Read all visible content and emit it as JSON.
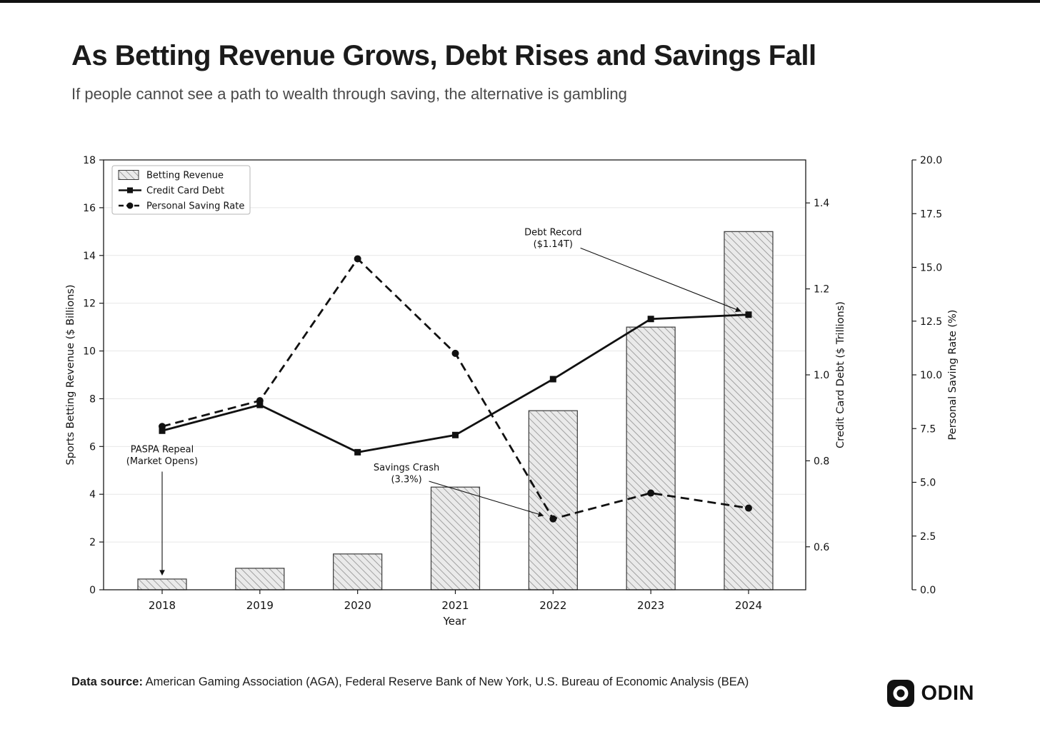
{
  "header": {
    "title": "As Betting Revenue Grows, Debt Rises and Savings Fall",
    "subtitle": "If people cannot see a path to wealth through saving, the alternative is gambling"
  },
  "chart_data": {
    "type": "combo",
    "x_label": "Year",
    "categories": [
      "2018",
      "2019",
      "2020",
      "2021",
      "2022",
      "2023",
      "2024"
    ],
    "series": [
      {
        "name": "Betting Revenue",
        "type": "bar",
        "axis": "left",
        "hatch": "///",
        "values": [
          0.45,
          0.9,
          1.5,
          4.3,
          7.5,
          11.0,
          15.0
        ]
      },
      {
        "name": "Credit Card Debt",
        "type": "line",
        "line_style": "solid",
        "marker": "square",
        "axis": "right",
        "values": [
          0.87,
          0.93,
          0.82,
          0.86,
          0.99,
          1.13,
          1.14
        ]
      },
      {
        "name": "Personal Saving Rate",
        "type": "line",
        "line_style": "dashed",
        "marker": "circle",
        "axis": "far_right",
        "values": [
          7.6,
          8.8,
          15.4,
          11.0,
          3.3,
          4.5,
          3.8
        ]
      }
    ],
    "axes": {
      "left": {
        "label": "Sports Betting Revenue ($ Billions)",
        "min": 0,
        "max": 18,
        "tick_values": [
          0,
          2,
          4,
          6,
          8,
          10,
          12,
          14,
          16,
          18
        ],
        "tick_labels": [
          "0",
          "2",
          "4",
          "6",
          "8",
          "10",
          "12",
          "14",
          "16",
          "18"
        ]
      },
      "right": {
        "label": "Credit Card Debt ($ Trillions)",
        "min": 0.5,
        "max": 1.5,
        "tick_values": [
          0.6,
          0.8,
          1.0,
          1.2,
          1.4
        ],
        "tick_labels": [
          "0.6",
          "0.8",
          "1.0",
          "1.2",
          "1.4"
        ]
      },
      "far_right": {
        "label": "Personal Saving Rate (%)",
        "min": 0,
        "max": 20,
        "tick_values": [
          0,
          2.5,
          5,
          7.5,
          10,
          12.5,
          15,
          17.5,
          20
        ],
        "tick_labels": [
          "0.0",
          "2.5",
          "5.0",
          "7.5",
          "10.0",
          "12.5",
          "15.0",
          "17.5",
          "20.0"
        ]
      }
    },
    "annotations": [
      {
        "id": "paspa-repeal",
        "lines": [
          "PASPA Repeal",
          "(Market Opens)"
        ],
        "axis": "left",
        "text_pos": [
          0,
          5.75
        ],
        "arrow_from": [
          0,
          4.95
        ],
        "arrow_to": [
          0,
          0.62
        ]
      },
      {
        "id": "savings-crash",
        "lines": [
          "Savings Crash",
          "(3.3%)"
        ],
        "axis": "far_right",
        "text_pos": [
          2.5,
          5.55
        ],
        "arrow_from": [
          2.73,
          5.05
        ],
        "arrow_to": [
          3.9,
          3.45
        ]
      },
      {
        "id": "debt-record",
        "lines": [
          "Debt Record",
          "($1.14T)"
        ],
        "axis": "right",
        "text_pos": [
          4.0,
          1.325
        ],
        "arrow_from": [
          4.28,
          1.295
        ],
        "arrow_to": [
          5.92,
          1.148
        ]
      }
    ],
    "grid": "horizontal",
    "legend_position": "upper-left"
  },
  "footer": {
    "source_label": "Data source:",
    "source_text": " American Gaming Association (AGA), Federal Reserve Bank of New York, U.S. Bureau of Economic Analysis (BEA)",
    "brand": "ODIN"
  },
  "colors": {
    "bar_fill": "#eaeaea",
    "bar_hatch": "#8f8f8f",
    "bar_edge": "#3a3a3a",
    "line": "#111111",
    "grid": "#e7e7e7",
    "axis": "#1a1a1a",
    "title": "#1b1b1b",
    "subtitle": "#4a4a4a",
    "background": "#ffffff"
  }
}
